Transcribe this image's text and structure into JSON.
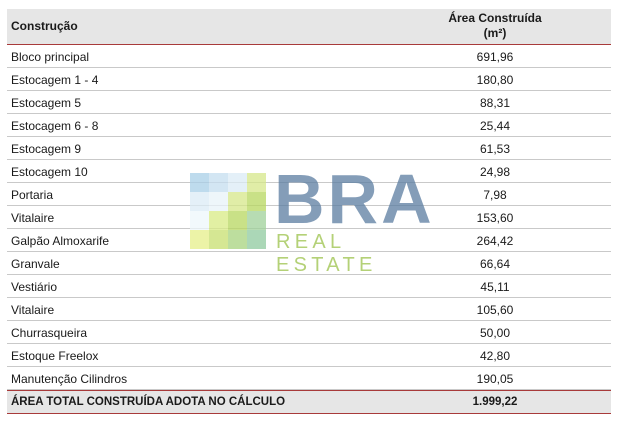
{
  "header": {
    "col1": "Construção",
    "col2_line1": "Área Construída",
    "col2_line2": "(m²)"
  },
  "rows": [
    {
      "name": "Bloco principal",
      "value": "691,96"
    },
    {
      "name": "Estocagem 1 - 4",
      "value": "180,80"
    },
    {
      "name": "Estocagem 5",
      "value": "88,31"
    },
    {
      "name": "Estocagem 6 - 8",
      "value": "25,44"
    },
    {
      "name": "Estocagem 9",
      "value": "61,53"
    },
    {
      "name": "Estocagem 10",
      "value": "24,98"
    },
    {
      "name": "Portaria",
      "value": "7,98"
    },
    {
      "name": "Vitalaire",
      "value": "153,60"
    },
    {
      "name": "Galpão Almoxarife",
      "value": "264,42"
    },
    {
      "name": "Granvale",
      "value": "66,64"
    },
    {
      "name": "Vestiário",
      "value": "45,11"
    },
    {
      "name": "Vitalaire",
      "value": "105,60"
    },
    {
      "name": "Churrasqueira",
      "value": "50,00"
    },
    {
      "name": "Estoque Freelox",
      "value": "42,80"
    },
    {
      "name": "Manutenção Cilindros",
      "value": "190,05"
    }
  ],
  "total": {
    "name": "ÁREA TOTAL CONSTRUÍDA ADOTA NO CÁLCULO",
    "value": "1.999,22"
  },
  "watermark": {
    "brand": "BRA",
    "sub": "REAL ESTATE",
    "colors": {
      "brand": "#5b7da1",
      "sub": "#9cc24a"
    }
  }
}
